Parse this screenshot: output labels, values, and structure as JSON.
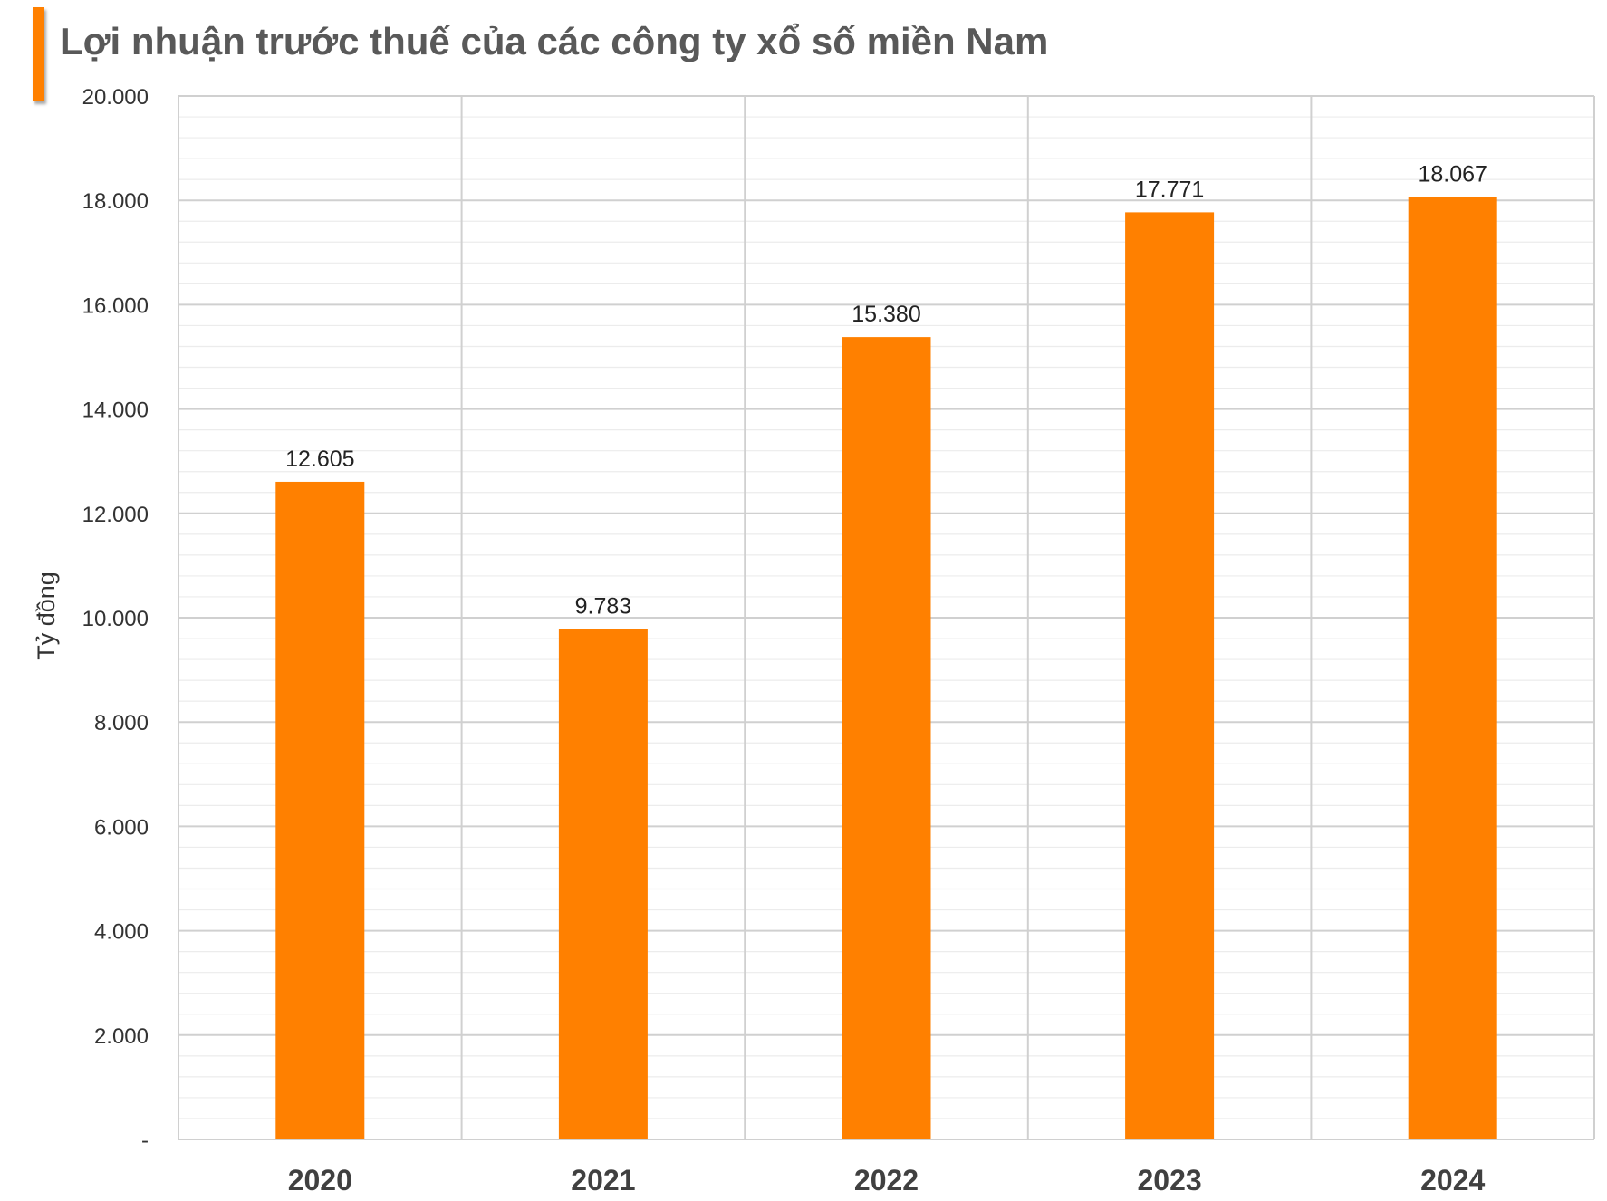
{
  "chart_data": {
    "type": "bar",
    "title": "Lợi nhuận trước thuế của các công ty xổ số miền Nam",
    "ylabel": "Tỷ đồng",
    "xlabel": "",
    "categories": [
      "2020",
      "2021",
      "2022",
      "2023",
      "2024"
    ],
    "values": [
      12605,
      9783,
      15380,
      17771,
      18067
    ],
    "data_labels": [
      "12.605",
      "9.783",
      "15.380",
      "17.771",
      "18.067"
    ],
    "ylim": [
      0,
      20000
    ],
    "yticks": [
      0,
      2000,
      4000,
      6000,
      8000,
      10000,
      12000,
      14000,
      16000,
      18000,
      20000
    ],
    "ytick_labels": [
      "-",
      "2.000",
      "4.000",
      "6.000",
      "8.000",
      "10.000",
      "12.000",
      "14.000",
      "16.000",
      "18.000",
      "20.000"
    ],
    "grid": true,
    "legend": "none",
    "bar_color": "#ff8000",
    "accent_color": "#ff8000"
  }
}
